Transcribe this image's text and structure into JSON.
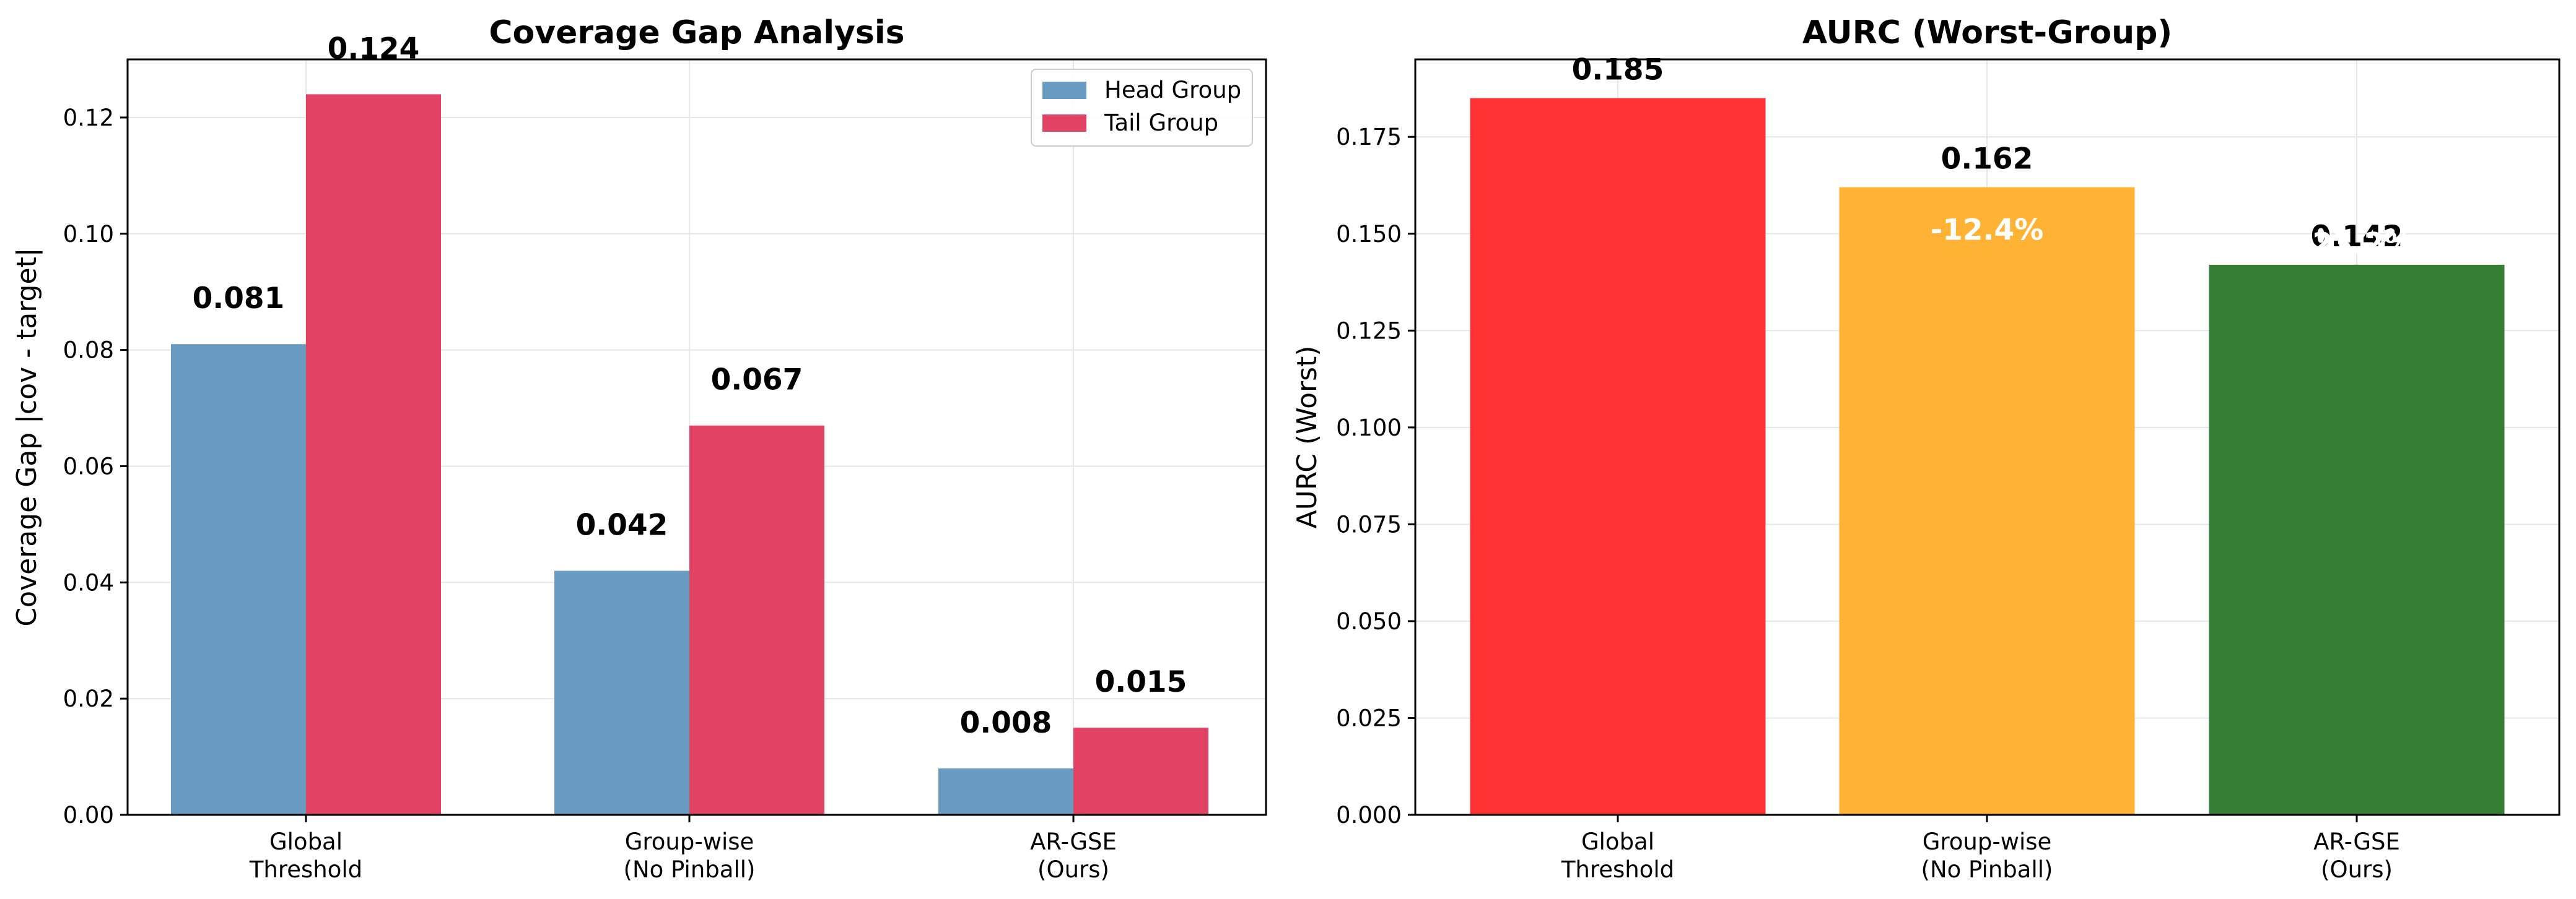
{
  "chart_data": [
    {
      "type": "bar",
      "title": "Coverage Gap Analysis",
      "xlabel": "",
      "ylabel": "Coverage Gap |cov - target|",
      "categories": [
        [
          "Global",
          "Threshold"
        ],
        [
          "Group-wise",
          "(No Pinball)"
        ],
        [
          "AR-GSE",
          "(Ours)"
        ]
      ],
      "series": [
        {
          "name": "Head Group",
          "color": "#6A9BC3",
          "values": [
            0.081,
            0.042,
            0.008
          ],
          "labels": [
            "0.081",
            "0.042",
            "0.008"
          ]
        },
        {
          "name": "Tail Group",
          "color": "#E24365",
          "values": [
            0.124,
            0.067,
            0.015
          ],
          "labels": [
            "0.124",
            "0.067",
            "0.015"
          ]
        }
      ],
      "ylim": [
        0,
        0.13
      ],
      "yticks": [
        0,
        0.02,
        0.04,
        0.06,
        0.08,
        0.1,
        0.12
      ],
      "ytick_labels": [
        "0.00",
        "0.02",
        "0.04",
        "0.06",
        "0.08",
        "0.10",
        "0.12"
      ],
      "grid": true,
      "legend": "top-right"
    },
    {
      "type": "bar",
      "title": "AURC (Worst-Group)",
      "xlabel": "",
      "ylabel": "AURC (Worst)",
      "categories": [
        [
          "Global",
          "Threshold"
        ],
        [
          "Group-wise",
          "(No Pinball)"
        ],
        [
          "AR-GSE",
          "(Ours)"
        ]
      ],
      "values": [
        0.185,
        0.162,
        0.142
      ],
      "labels": [
        "0.185",
        "0.162",
        "0.142"
      ],
      "colors": [
        "#FF3333",
        "#FFB233",
        "#367E34"
      ],
      "annotations": [
        {
          "bar": 1,
          "text": "-12.4%",
          "y": 0.151,
          "color": "#ffffff"
        },
        {
          "bar": 2,
          "text": "-23.2%",
          "y": 0.1475,
          "color": "#ffffff"
        }
      ],
      "ylim": [
        0,
        0.195
      ],
      "yticks": [
        0,
        0.025,
        0.05,
        0.075,
        0.1,
        0.125,
        0.15,
        0.175
      ],
      "ytick_labels": [
        "0.000",
        "0.025",
        "0.050",
        "0.075",
        "0.100",
        "0.125",
        "0.150",
        "0.175"
      ],
      "grid": true
    }
  ]
}
